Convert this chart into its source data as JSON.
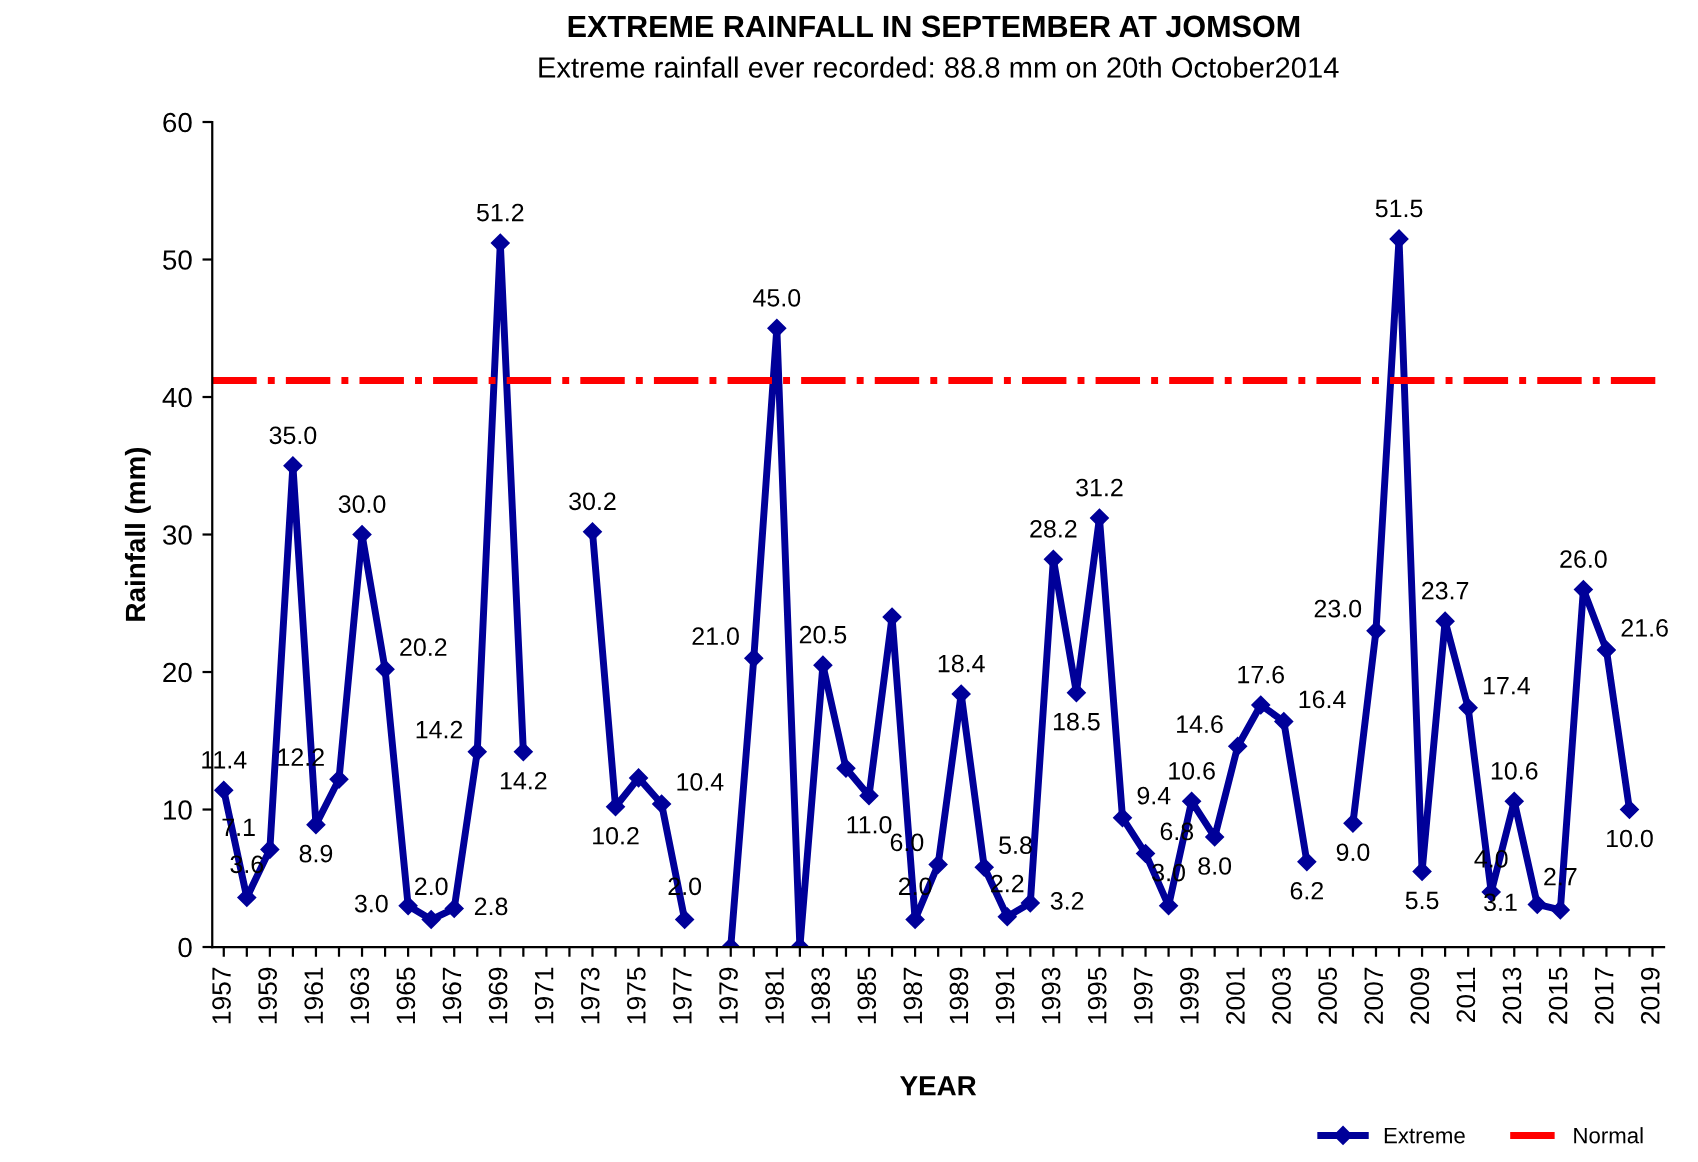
{
  "chart_data": {
    "type": "line",
    "title": "EXTREME RAINFALL IN SEPTEMBER AT JOMSOM",
    "subtitle": "Extreme rainfall ever recorded: 88.8 mm on 20th October2014",
    "xlabel": "YEAR",
    "ylabel": "Rainfall (mm)",
    "categories": [
      "1957",
      null,
      "1959",
      null,
      "1961",
      null,
      "1963",
      null,
      "1965",
      null,
      "1967",
      null,
      "1969",
      null,
      "1971",
      null,
      "1973",
      null,
      "1975",
      null,
      "1977",
      null,
      "1979",
      null,
      "1981",
      null,
      "1983",
      null,
      "1985",
      null,
      "1987",
      null,
      "1989",
      null,
      "1991",
      null,
      "1993",
      null,
      "1995",
      null,
      "1997",
      null,
      "1999",
      null,
      "2001",
      null,
      "2003",
      null,
      "2005",
      null,
      "2007",
      null,
      "2009",
      null,
      "2011",
      null,
      "2013",
      null,
      "2015",
      null,
      "2017",
      null,
      "2019"
    ],
    "series": [
      {
        "name": "Extreme",
        "color": "#000099",
        "values": [
          11.4,
          3.6,
          7.1,
          35.0,
          8.9,
          12.2,
          30.0,
          20.2,
          3.0,
          2.0,
          2.8,
          14.2,
          51.2,
          14.2,
          null,
          null,
          30.2,
          10.2,
          12.3,
          10.4,
          2.0,
          null,
          0,
          21.0,
          45.0,
          0,
          20.5,
          13.0,
          11.0,
          24.0,
          2.0,
          6.0,
          18.4,
          5.8,
          2.2,
          3.2,
          28.2,
          18.5,
          31.2,
          9.4,
          6.8,
          3.0,
          10.6,
          8.0,
          14.6,
          17.6,
          16.4,
          6.2,
          null,
          9.0,
          23.0,
          51.5,
          5.5,
          23.7,
          17.4,
          4.0,
          10.6,
          3.1,
          2.7,
          26.0,
          21.6,
          10.0,
          null
        ],
        "value_labels": [
          "11.4",
          "3.6",
          "7.1",
          "35.0",
          "8.9",
          "12.2",
          "30.0",
          "20.2",
          "3.0",
          "2.0",
          "2.8",
          "14.2",
          "51.2",
          "14.2",
          null,
          null,
          "30.2",
          "10.2",
          null,
          "10.4",
          "2.0",
          null,
          null,
          "21.0",
          "45.0",
          null,
          "20.5",
          null,
          "11.0",
          null,
          "2.0",
          "6.0",
          "18.4",
          "5.8",
          "2.2",
          "3.2",
          "28.2",
          "18.5",
          "31.2",
          "9.4",
          "6.8",
          "3.0",
          "10.6",
          "8.0",
          "14.6",
          "17.6",
          "16.4",
          "6.2",
          null,
          "9.0",
          "23.0",
          "51.5",
          "5.5",
          "23.7",
          "17.4",
          "4.0",
          "10.6",
          "3.1",
          "2.7",
          "26.0",
          "21.6",
          "10.0",
          null
        ]
      }
    ],
    "ref_lines": [
      {
        "axis": "y",
        "value": 41.2,
        "label": "Normal",
        "color": "#ff0000",
        "line_style": "dashdot"
      }
    ],
    "ylim": [
      0,
      60
    ],
    "yticks": [
      0,
      10,
      20,
      30,
      40,
      50,
      60
    ],
    "grid": false,
    "legend": "bottom",
    "marker": "diamond",
    "line_style": "solid"
  }
}
